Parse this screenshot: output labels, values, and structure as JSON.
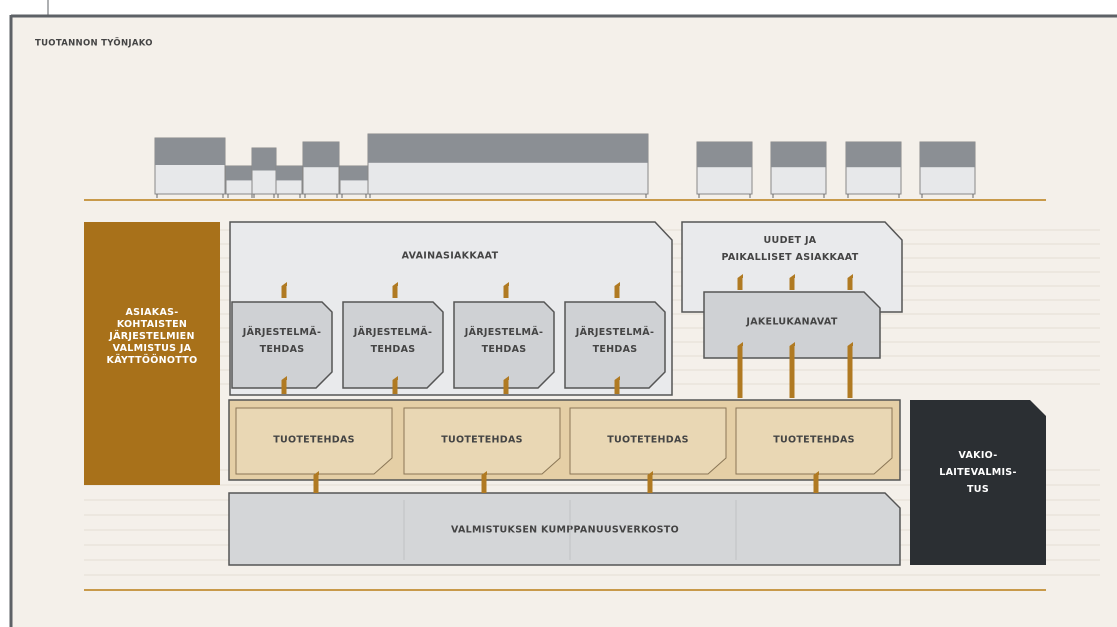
{
  "title": "TUOTANNON TYÖNJAKO",
  "sidebar": {
    "lines": [
      "ASIAKAS-",
      "KOHTAISTEN",
      "JÄRJESTELMIEN",
      "VALMISTUS JA",
      "KÄYTTÖÖNOTTO"
    ]
  },
  "key_customers": {
    "label": "AVAINASIAKKAAT"
  },
  "new_customers": {
    "lines": [
      "UUDET JA",
      "PAIKALLISET ASIAKKAAT"
    ]
  },
  "distribution": {
    "label": "JAKELUKANAVAT"
  },
  "system_factories": [
    {
      "lines": [
        "JÄRJESTELMÄ-",
        "TEHDAS"
      ]
    },
    {
      "lines": [
        "JÄRJESTELMÄ-",
        "TEHDAS"
      ]
    },
    {
      "lines": [
        "JÄRJESTELMÄ-",
        "TEHDAS"
      ]
    },
    {
      "lines": [
        "JÄRJESTELMÄ-",
        "TEHDAS"
      ]
    }
  ],
  "product_factories": [
    {
      "label": "TUOTETEHDAS"
    },
    {
      "label": "TUOTETEHDAS"
    },
    {
      "label": "TUOTETEHDAS"
    },
    {
      "label": "TUOTETEHDAS"
    }
  ],
  "partner_network": {
    "label": "VALMISTUKSEN KUMPPANUUSVERKOSTO"
  },
  "standard_equipment": {
    "lines": [
      "VAKIO-",
      "LAITEVALMIS-",
      "TUS"
    ]
  }
}
